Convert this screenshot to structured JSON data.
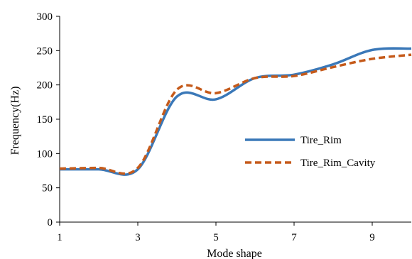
{
  "chart_data": {
    "type": "line",
    "title": "",
    "xlabel": "Mode shape",
    "ylabel": "Frequency(Hz)",
    "xlim": [
      1,
      10
    ],
    "ylim": [
      0,
      300
    ],
    "x_ticks": [
      1,
      3,
      5,
      7,
      9
    ],
    "x_tick_labels": [
      "1",
      "3",
      "5",
      "7",
      "9"
    ],
    "y_ticks": [
      0,
      50,
      100,
      150,
      200,
      250,
      300
    ],
    "y_tick_labels": [
      "0",
      "50",
      "100",
      "150",
      "200",
      "250",
      "300"
    ],
    "grid": false,
    "legend_position": "right",
    "series": [
      {
        "name": "Tire_Rim",
        "color": "#3a78b8",
        "style": "solid",
        "x": [
          1,
          2,
          3,
          4,
          5,
          6,
          7,
          8,
          9,
          10
        ],
        "y": [
          77,
          77,
          77,
          183,
          179,
          210,
          215,
          230,
          251,
          253
        ]
      },
      {
        "name": "Tire_Rim_Cavity",
        "color": "#c55a1a",
        "style": "dashed",
        "x": [
          1,
          2,
          3,
          4,
          5,
          6,
          7,
          8,
          9,
          10
        ],
        "y": [
          78,
          79,
          79,
          193,
          188,
          210,
          213,
          226,
          238,
          244
        ]
      }
    ]
  }
}
